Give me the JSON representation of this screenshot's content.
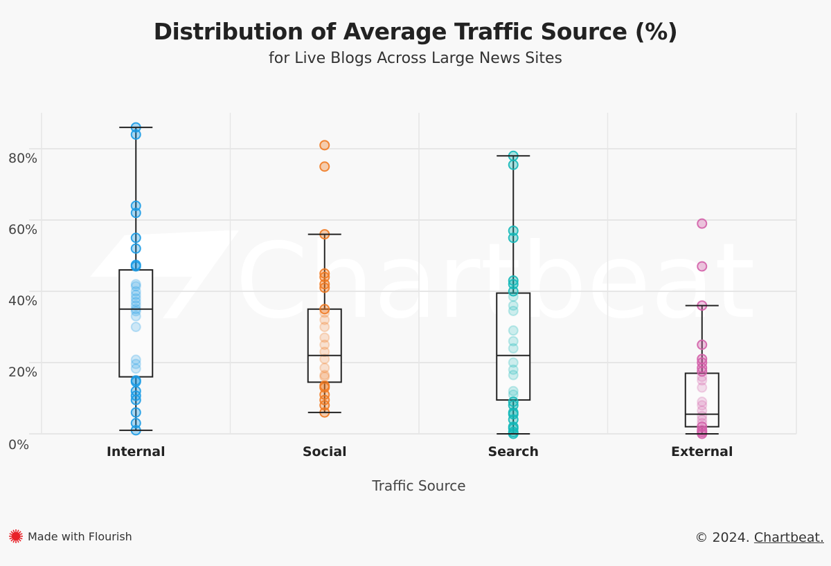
{
  "header": {
    "title": "Distribution of Average Traffic Source (%)",
    "subtitle": "for Live Blogs Across Large News Sites"
  },
  "footer": {
    "flourish_label": "Made with Flourish",
    "copyright": "© 2024.",
    "brand_link": "Chartbeat."
  },
  "watermark": "Chartbeat",
  "chart_data": {
    "type": "box",
    "title": "Distribution of Average Traffic Source (%)",
    "subtitle": "for Live Blogs Across Large News Sites",
    "xlabel": "Traffic Source",
    "ylabel": "",
    "ylim": [
      0,
      90
    ],
    "yticks": [
      0,
      20,
      40,
      60,
      80
    ],
    "ytick_labels": [
      "0%",
      "20%",
      "40%",
      "60%",
      "80%"
    ],
    "grid": true,
    "categories": [
      "Internal",
      "Social",
      "Search",
      "External"
    ],
    "colors": {
      "Internal": "#1a9be6",
      "Social": "#f07a22",
      "Search": "#13b8b8",
      "External": "#d35fa8"
    },
    "series": [
      {
        "name": "Internal",
        "min": 1,
        "q1": 16,
        "median": 35,
        "q3": 46,
        "max": 86,
        "points": [
          86,
          84,
          64,
          62,
          55,
          52,
          47.4,
          47,
          42,
          41.4,
          40,
          39,
          38,
          37,
          36,
          35,
          34.4,
          33,
          30,
          20.8,
          19.6,
          18.3,
          15,
          14.6,
          12,
          10.7,
          9.5,
          6,
          3,
          1
        ]
      },
      {
        "name": "Social",
        "min": 6,
        "q1": 14.5,
        "median": 22,
        "q3": 35,
        "max": 56,
        "outliers": [
          81,
          75
        ],
        "points": [
          81,
          75,
          56,
          45,
          44,
          42,
          41,
          35,
          34,
          32,
          30,
          27,
          25,
          23,
          21,
          18.5,
          16.5,
          16,
          13.5,
          13,
          11,
          9.5,
          8,
          6
        ]
      },
      {
        "name": "Search",
        "min": 0,
        "q1": 9.5,
        "median": 22,
        "q3": 39.5,
        "max": 78,
        "points": [
          78,
          75.5,
          57,
          55,
          43,
          42,
          40,
          38.5,
          36,
          34.5,
          29,
          26,
          24,
          20,
          18,
          16.5,
          12,
          11,
          9,
          8,
          6,
          5.5,
          4,
          2,
          1.5,
          0.5,
          0
        ]
      },
      {
        "name": "External",
        "min": 0,
        "q1": 2,
        "median": 5.5,
        "q3": 17,
        "max": 36,
        "outliers": [
          59,
          47
        ],
        "points": [
          59,
          47,
          36,
          25,
          21,
          20,
          18.5,
          17.5,
          16,
          15,
          13,
          9,
          8,
          6.5,
          5,
          4,
          3,
          2,
          1,
          0.5,
          0
        ]
      }
    ]
  }
}
